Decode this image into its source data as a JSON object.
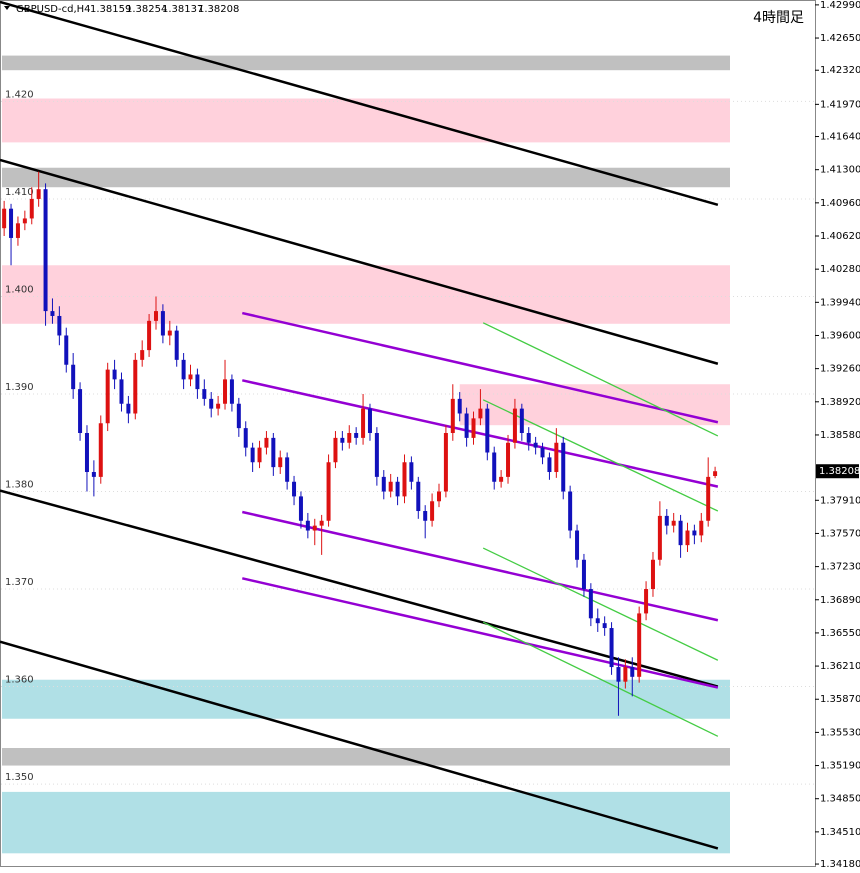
{
  "chart_data": {
    "type": "candlestick",
    "symbol": "GBPUSD-cd,H4",
    "timeframe_label": "4時間足",
    "up_color": "#dd1111",
    "down_color": "#1111bb",
    "xlim": [
      -0.6,
      104.0
    ],
    "ylim": [
      1.3416,
      1.4304
    ],
    "yticks": [
      {
        "value": 1.4299,
        "label": "1.42990"
      },
      {
        "value": 1.4265,
        "label": "1.42650"
      },
      {
        "value": 1.4232,
        "label": "1.42320"
      },
      {
        "value": 1.4197,
        "label": "1.41970"
      },
      {
        "value": 1.4164,
        "label": "1.41640"
      },
      {
        "value": 1.413,
        "label": "1.41300"
      },
      {
        "value": 1.4096,
        "label": "1.40960"
      },
      {
        "value": 1.4062,
        "label": "1.40620"
      },
      {
        "value": 1.4028,
        "label": "1.40280"
      },
      {
        "value": 1.3994,
        "label": "1.39940"
      },
      {
        "value": 1.396,
        "label": "1.39600"
      },
      {
        "value": 1.3926,
        "label": "1.39260"
      },
      {
        "value": 1.3892,
        "label": "1.38920"
      },
      {
        "value": 1.3858,
        "label": "1.38580"
      },
      {
        "value": 1.3791,
        "label": "1.37910"
      },
      {
        "value": 1.3757,
        "label": "1.37570"
      },
      {
        "value": 1.3723,
        "label": "1.37230"
      },
      {
        "value": 1.3689,
        "label": "1.36890"
      },
      {
        "value": 1.3655,
        "label": "1.36550"
      },
      {
        "value": 1.3621,
        "label": "1.36210"
      },
      {
        "value": 1.3587,
        "label": "1.35870"
      },
      {
        "value": 1.3553,
        "label": "1.35530"
      },
      {
        "value": 1.3519,
        "label": "1.35190"
      },
      {
        "value": 1.3485,
        "label": "1.34850"
      },
      {
        "value": 1.3451,
        "label": "1.34510"
      },
      {
        "value": 1.3418,
        "label": "1.34180"
      }
    ],
    "level_labels": [
      {
        "value": 1.42,
        "label": "1.420"
      },
      {
        "value": 1.41,
        "label": "1.410"
      },
      {
        "value": 1.4,
        "label": "1.400"
      },
      {
        "value": 1.39,
        "label": "1.390"
      },
      {
        "value": 1.38,
        "label": "1.380"
      },
      {
        "value": 1.37,
        "label": "1.370"
      },
      {
        "value": 1.36,
        "label": "1.360"
      },
      {
        "value": 1.35,
        "label": "1.350"
      }
    ],
    "zones": [
      {
        "from": 1.4232,
        "to": 1.4247,
        "color": "#c0c0c0"
      },
      {
        "from": 1.4158,
        "to": 1.4203,
        "color": "#ffd1dc"
      },
      {
        "from": 1.4112,
        "to": 1.4132,
        "color": "#c0c0c0"
      },
      {
        "from": 1.3972,
        "to": 1.4032,
        "color": "#ffd1dc"
      },
      {
        "from": 1.3868,
        "to": 1.391,
        "color": "#ffd1dc",
        "x0": 66
      },
      {
        "from": 1.3567,
        "to": 1.3607,
        "color": "#b0e0e6"
      },
      {
        "from": 1.3519,
        "to": 1.3537,
        "color": "#c0c0c0"
      },
      {
        "from": 1.3429,
        "to": 1.3492,
        "color": "#b0e0e6"
      }
    ],
    "trendlines": [
      {
        "color": "#000000",
        "width": 2.5,
        "x": [
          -0.6,
          103.4
        ],
        "y": [
          1.4302,
          1.4094
        ]
      },
      {
        "color": "#000000",
        "width": 2.5,
        "x": [
          -0.6,
          103.4
        ],
        "y": [
          1.414,
          1.3931
        ]
      },
      {
        "color": "#000000",
        "width": 2.5,
        "x": [
          -0.6,
          103.4
        ],
        "y": [
          1.3801,
          1.36
        ]
      },
      {
        "color": "#000000",
        "width": 2.5,
        "x": [
          -0.6,
          103.4
        ],
        "y": [
          1.3646,
          1.3434
        ]
      },
      {
        "color": "#9400d3",
        "width": 2.5,
        "x": [
          34.5,
          103.4
        ],
        "y": [
          1.3983,
          1.3871
        ]
      },
      {
        "color": "#9400d3",
        "width": 2.5,
        "x": [
          34.5,
          103.4
        ],
        "y": [
          1.3914,
          1.3805
        ]
      },
      {
        "color": "#9400d3",
        "width": 2.5,
        "x": [
          34.5,
          103.4
        ],
        "y": [
          1.3779,
          1.3668
        ]
      },
      {
        "color": "#9400d3",
        "width": 2.5,
        "x": [
          34.5,
          103.4
        ],
        "y": [
          1.3711,
          1.3599
        ]
      },
      {
        "color": "#44cc44",
        "width": 1.3,
        "x": [
          69.4,
          103.4
        ],
        "y": [
          1.3973,
          1.3857
        ]
      },
      {
        "color": "#44cc44",
        "width": 1.3,
        "x": [
          69.4,
          103.4
        ],
        "y": [
          1.3894,
          1.378
        ]
      },
      {
        "color": "#44cc44",
        "width": 1.3,
        "x": [
          69.4,
          103.4
        ],
        "y": [
          1.3742,
          1.3627
        ]
      },
      {
        "color": "#44cc44",
        "width": 1.3,
        "x": [
          69.4,
          103.4
        ],
        "y": [
          1.3666,
          1.3549
        ]
      }
    ],
    "ohlc": [
      [
        1.407,
        1.4098,
        1.4062,
        1.409
      ],
      [
        1.409,
        1.4095,
        1.4032,
        1.406
      ],
      [
        1.406,
        1.4082,
        1.4052,
        1.4075
      ],
      [
        1.4075,
        1.4088,
        1.4068,
        1.408
      ],
      [
        1.408,
        1.4112,
        1.4074,
        1.41
      ],
      [
        1.41,
        1.4128,
        1.4092,
        1.411
      ],
      [
        1.411,
        1.4116,
        1.397,
        1.3985
      ],
      [
        1.3985,
        1.3998,
        1.3972,
        1.398
      ],
      [
        1.398,
        1.399,
        1.395,
        1.396
      ],
      [
        1.396,
        1.3968,
        1.3922,
        1.393
      ],
      [
        1.393,
        1.3942,
        1.3895,
        1.3905
      ],
      [
        1.3905,
        1.3912,
        1.3852,
        1.386
      ],
      [
        1.386,
        1.3868,
        1.38,
        1.382
      ],
      [
        1.382,
        1.3832,
        1.3795,
        1.3815
      ],
      [
        1.3815,
        1.3878,
        1.3808,
        1.387
      ],
      [
        1.387,
        1.3932,
        1.3862,
        1.3925
      ],
      [
        1.3925,
        1.3935,
        1.3905,
        1.3915
      ],
      [
        1.3915,
        1.3922,
        1.3882,
        1.389
      ],
      [
        1.389,
        1.3898,
        1.387,
        1.388
      ],
      [
        1.388,
        1.3942,
        1.3874,
        1.3935
      ],
      [
        1.3935,
        1.3955,
        1.3928,
        1.3945
      ],
      [
        1.3945,
        1.3982,
        1.3938,
        1.3975
      ],
      [
        1.3975,
        1.4,
        1.3966,
        1.3985
      ],
      [
        1.3985,
        1.3992,
        1.3952,
        1.396
      ],
      [
        1.396,
        1.3975,
        1.395,
        1.3965
      ],
      [
        1.3965,
        1.397,
        1.3928,
        1.3935
      ],
      [
        1.3935,
        1.3942,
        1.3905,
        1.3915
      ],
      [
        1.3915,
        1.393,
        1.3908,
        1.392
      ],
      [
        1.392,
        1.3926,
        1.3895,
        1.3905
      ],
      [
        1.3905,
        1.3915,
        1.3888,
        1.3895
      ],
      [
        1.3895,
        1.3902,
        1.3876,
        1.3885
      ],
      [
        1.3885,
        1.3898,
        1.3878,
        1.389
      ],
      [
        1.389,
        1.3935,
        1.3884,
        1.3915
      ],
      [
        1.3915,
        1.392,
        1.3882,
        1.389
      ],
      [
        1.389,
        1.3896,
        1.3856,
        1.3865
      ],
      [
        1.3865,
        1.3872,
        1.3836,
        1.3845
      ],
      [
        1.3845,
        1.385,
        1.382,
        1.383
      ],
      [
        1.383,
        1.3852,
        1.3824,
        1.3845
      ],
      [
        1.3845,
        1.3862,
        1.3838,
        1.3855
      ],
      [
        1.3855,
        1.386,
        1.3816,
        1.3825
      ],
      [
        1.3825,
        1.3842,
        1.3818,
        1.3835
      ],
      [
        1.3835,
        1.384,
        1.3802,
        1.381
      ],
      [
        1.381,
        1.3816,
        1.3786,
        1.3795
      ],
      [
        1.3795,
        1.38,
        1.3762,
        1.377
      ],
      [
        1.377,
        1.3778,
        1.3752,
        1.376
      ],
      [
        1.376,
        1.3772,
        1.3745,
        1.3765
      ],
      [
        1.3765,
        1.3776,
        1.3735,
        1.377
      ],
      [
        1.377,
        1.3838,
        1.3764,
        1.383
      ],
      [
        1.383,
        1.3862,
        1.3824,
        1.3855
      ],
      [
        1.3855,
        1.3862,
        1.3842,
        1.385
      ],
      [
        1.385,
        1.3868,
        1.3844,
        1.386
      ],
      [
        1.386,
        1.3866,
        1.3848,
        1.3855
      ],
      [
        1.3855,
        1.39,
        1.3848,
        1.3885
      ],
      [
        1.3885,
        1.389,
        1.3852,
        1.386
      ],
      [
        1.386,
        1.3866,
        1.3806,
        1.3815
      ],
      [
        1.3815,
        1.3822,
        1.3792,
        1.38
      ],
      [
        1.38,
        1.3818,
        1.3794,
        1.381
      ],
      [
        1.381,
        1.3815,
        1.3786,
        1.3795
      ],
      [
        1.3795,
        1.3838,
        1.3788,
        1.383
      ],
      [
        1.383,
        1.3836,
        1.3802,
        1.381
      ],
      [
        1.381,
        1.3815,
        1.3772,
        1.378
      ],
      [
        1.378,
        1.3786,
        1.3752,
        1.377
      ],
      [
        1.377,
        1.3798,
        1.3764,
        1.379
      ],
      [
        1.379,
        1.3808,
        1.3784,
        1.38
      ],
      [
        1.38,
        1.3868,
        1.3794,
        1.386
      ],
      [
        1.386,
        1.391,
        1.3852,
        1.3895
      ],
      [
        1.3895,
        1.3902,
        1.3872,
        1.388
      ],
      [
        1.388,
        1.3886,
        1.3846,
        1.3855
      ],
      [
        1.3855,
        1.3882,
        1.3848,
        1.3875
      ],
      [
        1.3875,
        1.3905,
        1.3868,
        1.3885
      ],
      [
        1.3885,
        1.389,
        1.3832,
        1.384
      ],
      [
        1.384,
        1.3846,
        1.3802,
        1.381
      ],
      [
        1.381,
        1.3822,
        1.3804,
        1.3815
      ],
      [
        1.3815,
        1.3858,
        1.3808,
        1.385
      ],
      [
        1.385,
        1.3895,
        1.3844,
        1.3885
      ],
      [
        1.3885,
        1.389,
        1.3852,
        1.386
      ],
      [
        1.386,
        1.3866,
        1.3842,
        1.385
      ],
      [
        1.385,
        1.3856,
        1.3838,
        1.3845
      ],
      [
        1.3845,
        1.385,
        1.3828,
        1.3835
      ],
      [
        1.3835,
        1.384,
        1.3812,
        1.382
      ],
      [
        1.382,
        1.3865,
        1.3814,
        1.385
      ],
      [
        1.385,
        1.3856,
        1.3792,
        1.38
      ],
      [
        1.38,
        1.3806,
        1.3752,
        1.376
      ],
      [
        1.376,
        1.3766,
        1.3722,
        1.373
      ],
      [
        1.373,
        1.3736,
        1.3692,
        1.37
      ],
      [
        1.37,
        1.3706,
        1.3662,
        1.367
      ],
      [
        1.367,
        1.368,
        1.3656,
        1.3665
      ],
      [
        1.3665,
        1.3672,
        1.3652,
        1.366
      ],
      [
        1.366,
        1.3666,
        1.3612,
        1.362
      ],
      [
        1.362,
        1.363,
        1.357,
        1.3605
      ],
      [
        1.3605,
        1.3628,
        1.3598,
        1.362
      ],
      [
        1.362,
        1.363,
        1.359,
        1.361
      ],
      [
        1.361,
        1.3682,
        1.3604,
        1.3675
      ],
      [
        1.3675,
        1.3708,
        1.3668,
        1.37
      ],
      [
        1.37,
        1.3738,
        1.3692,
        1.373
      ],
      [
        1.373,
        1.379,
        1.3724,
        1.3775
      ],
      [
        1.3775,
        1.3782,
        1.3756,
        1.3765
      ],
      [
        1.3765,
        1.3778,
        1.3758,
        1.377
      ],
      [
        1.377,
        1.3776,
        1.3732,
        1.3745
      ],
      [
        1.3745,
        1.3768,
        1.3738,
        1.376
      ],
      [
        1.376,
        1.3766,
        1.3746,
        1.3755
      ],
      [
        1.3755,
        1.3778,
        1.3748,
        1.377
      ],
      [
        1.377,
        1.3835,
        1.3764,
        1.3815
      ],
      [
        1.38159,
        1.38254,
        1.38137,
        1.38208
      ]
    ]
  }
}
